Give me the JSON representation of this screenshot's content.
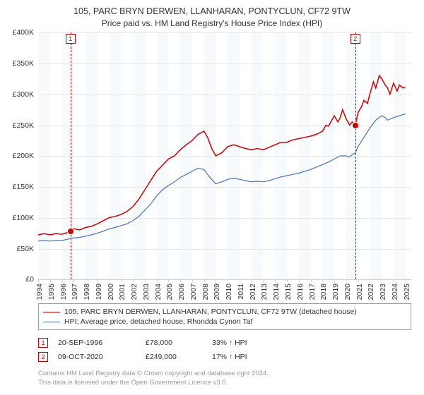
{
  "title": "105, PARC BRYN DERWEN, LLANHARAN, PONTYCLUN, CF72 9TW",
  "subtitle": "Price paid vs. HM Land Registry's House Price Index (HPI)",
  "chart": {
    "type": "line",
    "background_color": "#ffffff",
    "plot_band_colors": [
      "#f6fafd",
      "#ffffff"
    ],
    "grid_color": "#e6e6e6",
    "axis_tick_color": "#cccccc",
    "label_fontsize": 10.5,
    "title_fontsize": 12.5,
    "x_years": [
      1994,
      1995,
      1996,
      1997,
      1998,
      1999,
      2000,
      2001,
      2002,
      2003,
      2004,
      2005,
      2006,
      2007,
      2008,
      2009,
      2010,
      2011,
      2012,
      2013,
      2014,
      2015,
      2016,
      2017,
      2018,
      2019,
      2020,
      2021,
      2022,
      2023,
      2024,
      2025
    ],
    "xlim": [
      1994,
      2025.5
    ],
    "ylim": [
      0,
      400000
    ],
    "ytick_step": 50000,
    "yticks": [
      "£0",
      "£50K",
      "£100K",
      "£150K",
      "£200K",
      "£250K",
      "£300K",
      "£350K",
      "£400K"
    ],
    "series": [
      {
        "name": "105, PARC BRYN DERWEN, LLANHARAN, PONTYCLUN, CF72 9TW (detached house)",
        "color": "#cc0000",
        "line_width": 1.5,
        "points": [
          [
            1994,
            72000
          ],
          [
            1994.5,
            74000
          ],
          [
            1995,
            72000
          ],
          [
            1995.5,
            74000
          ],
          [
            1996,
            73000
          ],
          [
            1996.5,
            76000
          ],
          [
            1996.7,
            78000
          ],
          [
            1997,
            82000
          ],
          [
            1997.5,
            80000
          ],
          [
            1998,
            84000
          ],
          [
            1998.5,
            86000
          ],
          [
            1999,
            90000
          ],
          [
            1999.5,
            95000
          ],
          [
            2000,
            100000
          ],
          [
            2000.5,
            102000
          ],
          [
            2001,
            105000
          ],
          [
            2001.5,
            110000
          ],
          [
            2002,
            118000
          ],
          [
            2002.5,
            130000
          ],
          [
            2003,
            145000
          ],
          [
            2003.5,
            160000
          ],
          [
            2004,
            175000
          ],
          [
            2004.5,
            185000
          ],
          [
            2005,
            195000
          ],
          [
            2005.5,
            200000
          ],
          [
            2006,
            210000
          ],
          [
            2006.5,
            218000
          ],
          [
            2007,
            225000
          ],
          [
            2007.5,
            235000
          ],
          [
            2008,
            240000
          ],
          [
            2008.3,
            230000
          ],
          [
            2008.7,
            210000
          ],
          [
            2009,
            200000
          ],
          [
            2009.5,
            205000
          ],
          [
            2010,
            215000
          ],
          [
            2010.5,
            218000
          ],
          [
            2011,
            215000
          ],
          [
            2011.5,
            212000
          ],
          [
            2012,
            210000
          ],
          [
            2012.5,
            212000
          ],
          [
            2013,
            210000
          ],
          [
            2013.5,
            214000
          ],
          [
            2014,
            218000
          ],
          [
            2014.5,
            222000
          ],
          [
            2015,
            222000
          ],
          [
            2015.5,
            226000
          ],
          [
            2016,
            228000
          ],
          [
            2016.5,
            230000
          ],
          [
            2017,
            232000
          ],
          [
            2017.5,
            235000
          ],
          [
            2018,
            240000
          ],
          [
            2018.3,
            250000
          ],
          [
            2018.5,
            248000
          ],
          [
            2018.8,
            258000
          ],
          [
            2019,
            265000
          ],
          [
            2019.3,
            255000
          ],
          [
            2019.5,
            262000
          ],
          [
            2019.7,
            275000
          ],
          [
            2020,
            260000
          ],
          [
            2020.3,
            250000
          ],
          [
            2020.5,
            255000
          ],
          [
            2020.77,
            249000
          ],
          [
            2021,
            270000
          ],
          [
            2021.3,
            280000
          ],
          [
            2021.5,
            290000
          ],
          [
            2021.8,
            285000
          ],
          [
            2022,
            300000
          ],
          [
            2022.3,
            320000
          ],
          [
            2022.5,
            310000
          ],
          [
            2022.8,
            330000
          ],
          [
            2023,
            325000
          ],
          [
            2023.3,
            315000
          ],
          [
            2023.5,
            310000
          ],
          [
            2023.7,
            300000
          ],
          [
            2024,
            318000
          ],
          [
            2024.3,
            305000
          ],
          [
            2024.5,
            315000
          ],
          [
            2024.8,
            310000
          ],
          [
            2025,
            312000
          ]
        ]
      },
      {
        "name": "HPI: Average price, detached house, Rhondda Cynon Taf",
        "color": "#4472c4",
        "line_width": 1.2,
        "points": [
          [
            1994,
            62000
          ],
          [
            1994.5,
            63000
          ],
          [
            1995,
            62000
          ],
          [
            1995.5,
            63000
          ],
          [
            1996,
            63000
          ],
          [
            1996.5,
            65000
          ],
          [
            1997,
            67000
          ],
          [
            1997.5,
            68000
          ],
          [
            1998,
            70000
          ],
          [
            1998.5,
            72000
          ],
          [
            1999,
            75000
          ],
          [
            1999.5,
            78000
          ],
          [
            2000,
            82000
          ],
          [
            2000.5,
            84000
          ],
          [
            2001,
            87000
          ],
          [
            2001.5,
            90000
          ],
          [
            2002,
            95000
          ],
          [
            2002.5,
            102000
          ],
          [
            2003,
            112000
          ],
          [
            2003.5,
            122000
          ],
          [
            2004,
            135000
          ],
          [
            2004.5,
            145000
          ],
          [
            2005,
            152000
          ],
          [
            2005.5,
            158000
          ],
          [
            2006,
            165000
          ],
          [
            2006.5,
            170000
          ],
          [
            2007,
            175000
          ],
          [
            2007.5,
            180000
          ],
          [
            2008,
            178000
          ],
          [
            2008.5,
            165000
          ],
          [
            2009,
            155000
          ],
          [
            2009.5,
            158000
          ],
          [
            2010,
            162000
          ],
          [
            2010.5,
            164000
          ],
          [
            2011,
            162000
          ],
          [
            2011.5,
            160000
          ],
          [
            2012,
            158000
          ],
          [
            2012.5,
            159000
          ],
          [
            2013,
            158000
          ],
          [
            2013.5,
            160000
          ],
          [
            2014,
            163000
          ],
          [
            2014.5,
            166000
          ],
          [
            2015,
            168000
          ],
          [
            2015.5,
            170000
          ],
          [
            2016,
            172000
          ],
          [
            2016.5,
            175000
          ],
          [
            2017,
            178000
          ],
          [
            2017.5,
            182000
          ],
          [
            2018,
            186000
          ],
          [
            2018.5,
            190000
          ],
          [
            2019,
            195000
          ],
          [
            2019.5,
            200000
          ],
          [
            2020,
            200000
          ],
          [
            2020.3,
            198000
          ],
          [
            2020.5,
            202000
          ],
          [
            2020.77,
            205000
          ],
          [
            2021,
            215000
          ],
          [
            2021.5,
            230000
          ],
          [
            2022,
            245000
          ],
          [
            2022.5,
            258000
          ],
          [
            2023,
            265000
          ],
          [
            2023.3,
            262000
          ],
          [
            2023.5,
            258000
          ],
          [
            2024,
            262000
          ],
          [
            2024.5,
            265000
          ],
          [
            2025,
            268000
          ]
        ]
      }
    ],
    "markers": [
      {
        "id": "1",
        "x": 1996.72,
        "y": 78000,
        "dot_color": "#cc0000",
        "dot_border": "#ffffff"
      },
      {
        "id": "2",
        "x": 2020.77,
        "y": 249000,
        "dot_color": "#cc0000",
        "dot_border": "#ffffff"
      }
    ]
  },
  "legend": {
    "border_color": "#999999",
    "items": [
      {
        "label": "105, PARC BRYN DERWEN, LLANHARAN, PONTYCLUN, CF72 9TW (detached house)",
        "color": "#cc0000",
        "width": 1.8
      },
      {
        "label": "HPI: Average price, detached house, Rhondda Cynon Taf",
        "color": "#4472c4",
        "width": 1.5
      }
    ]
  },
  "annotations": [
    {
      "id": "1",
      "date": "20-SEP-1996",
      "price": "£78,000",
      "hpi": "33% ↑ HPI"
    },
    {
      "id": "2",
      "date": "09-OCT-2020",
      "price": "£249,000",
      "hpi": "17% ↑ HPI"
    }
  ],
  "footer": {
    "line1": "Contains HM Land Registry data © Crown copyright and database right 2024.",
    "line2": "This data is licensed under the Open Government Licence v3.0."
  }
}
